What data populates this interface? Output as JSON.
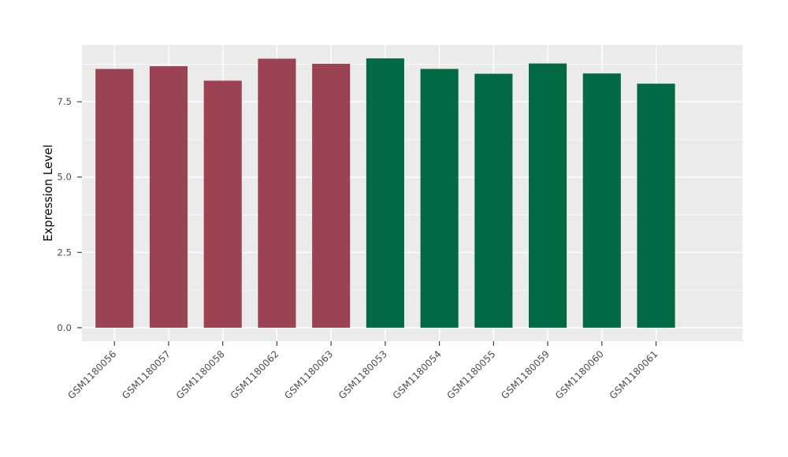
{
  "chart_data": {
    "type": "bar",
    "title": "",
    "xlabel": "",
    "ylabel": "Expression Level",
    "categories": [
      "GSM1180056",
      "GSM1180057",
      "GSM1180058",
      "GSM1180062",
      "GSM1180063",
      "GSM1180053",
      "GSM1180054",
      "GSM1180055",
      "GSM1180059",
      "GSM1180060",
      "GSM1180061"
    ],
    "values": [
      8.59,
      8.68,
      8.2,
      8.93,
      8.76,
      8.94,
      8.59,
      8.43,
      8.77,
      8.44,
      8.1
    ],
    "groups": [
      0,
      0,
      0,
      0,
      0,
      1,
      1,
      1,
      1,
      1,
      1
    ],
    "group_colors": [
      "#9B4352",
      "#016A45"
    ],
    "ylim": [
      0,
      9.39
    ],
    "yticks": [
      0,
      2.5,
      5,
      7.5
    ],
    "ytick_labels": [
      "0.0",
      "2.5",
      "5.0",
      "7.5"
    ],
    "minor_yticks": [
      1.25,
      3.75,
      6.25,
      8.75
    ],
    "grid": "on",
    "legend_position": "none",
    "bar_relative_width": 0.7,
    "x_label_rotation_deg": 45,
    "style": {
      "panel_bg": "#EBEBEB",
      "grid_color": "#FFFFFF",
      "tick_mark_color": "#333333",
      "tick_label_color": "#4D4D4D",
      "axis_title_color": "#000000",
      "figure_bg": "#FFFFFF"
    }
  }
}
